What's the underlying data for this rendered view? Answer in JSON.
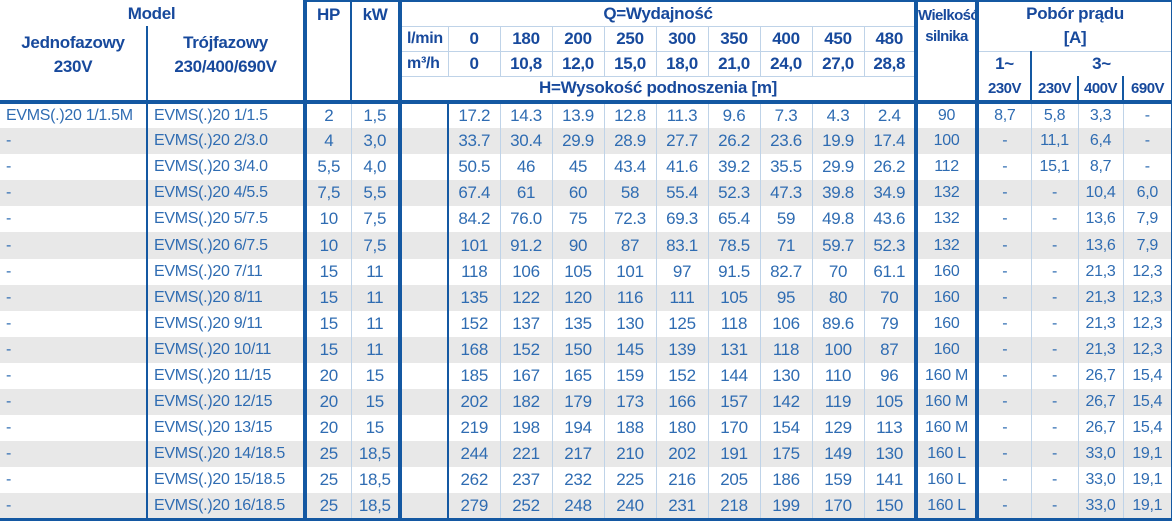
{
  "colors": {
    "border_dark_blue": "#1458A2",
    "separator_light_blue": "#BFD3E8",
    "header_text_navy": "#17499C",
    "data_text_blue": "#2F6CB2",
    "stripe_gray": "#E8E8E8"
  },
  "table": {
    "header": {
      "model": "Model",
      "jednofazowy": "Jednofazowy\n230V",
      "trojfazowy": "Trójfazowy\n230/400/690V",
      "hp": "HP",
      "kw": "kW",
      "q_title": "Q=Wydajność",
      "unit_lmin": "l/min",
      "unit_m3h": "m³/h",
      "q_lmin": [
        "0",
        "180",
        "200",
        "250",
        "300",
        "350",
        "400",
        "450",
        "480"
      ],
      "q_m3h": [
        "0",
        "10,8",
        "12,0",
        "15,0",
        "18,0",
        "21,0",
        "24,0",
        "27,0",
        "28,8"
      ],
      "h_title": "H=Wysokość podnoszenia [m]",
      "motor_size": "Wielkość\nsilnika",
      "current_title": "Pobór prądu\n[A]",
      "phase1": "1~",
      "phase3": "3~",
      "volt_cols": [
        "230V",
        "230V",
        "400V",
        "690V"
      ]
    },
    "rows": [
      {
        "m1": "EVMS(.)20 1/1.5M",
        "m3": "EVMS(.)20 1/1.5",
        "hp": "2",
        "kw": "1,5",
        "h": [
          "17.2",
          "14.3",
          "13.9",
          "12.8",
          "11.3",
          "9.6",
          "7.3",
          "4.3",
          "2.4"
        ],
        "motor": "90",
        "a": [
          "8,7",
          "5,8",
          "3,3",
          "-"
        ]
      },
      {
        "m1": "-",
        "m3": "EVMS(.)20 2/3.0",
        "hp": "4",
        "kw": "3,0",
        "h": [
          "33.7",
          "30.4",
          "29.9",
          "28.9",
          "27.7",
          "26.2",
          "23.6",
          "19.9",
          "17.4"
        ],
        "motor": "100",
        "a": [
          "-",
          "11,1",
          "6,4",
          "-"
        ]
      },
      {
        "m1": "-",
        "m3": "EVMS(.)20 3/4.0",
        "hp": "5,5",
        "kw": "4,0",
        "h": [
          "50.5",
          "46",
          "45",
          "43.4",
          "41.6",
          "39.2",
          "35.5",
          "29.9",
          "26.2"
        ],
        "motor": "112",
        "a": [
          "-",
          "15,1",
          "8,7",
          "-"
        ]
      },
      {
        "m1": "-",
        "m3": "EVMS(.)20 4/5.5",
        "hp": "7,5",
        "kw": "5,5",
        "h": [
          "67.4",
          "61",
          "60",
          "58",
          "55.4",
          "52.3",
          "47.3",
          "39.8",
          "34.9"
        ],
        "motor": "132",
        "a": [
          "-",
          "-",
          "10,4",
          "6,0"
        ]
      },
      {
        "m1": "-",
        "m3": "EVMS(.)20 5/7.5",
        "hp": "10",
        "kw": "7,5",
        "h": [
          "84.2",
          "76.0",
          "75",
          "72.3",
          "69.3",
          "65.4",
          "59",
          "49.8",
          "43.6"
        ],
        "motor": "132",
        "a": [
          "-",
          "-",
          "13,6",
          "7,9"
        ]
      },
      {
        "m1": "-",
        "m3": "EVMS(.)20 6/7.5",
        "hp": "10",
        "kw": "7,5",
        "h": [
          "101",
          "91.2",
          "90",
          "87",
          "83.1",
          "78.5",
          "71",
          "59.7",
          "52.3"
        ],
        "motor": "132",
        "a": [
          "-",
          "-",
          "13,6",
          "7,9"
        ]
      },
      {
        "m1": "-",
        "m3": "EVMS(.)20 7/11",
        "hp": "15",
        "kw": "11",
        "h": [
          "118",
          "106",
          "105",
          "101",
          "97",
          "91.5",
          "82.7",
          "70",
          "61.1"
        ],
        "motor": "160",
        "a": [
          "-",
          "-",
          "21,3",
          "12,3"
        ]
      },
      {
        "m1": "-",
        "m3": "EVMS(.)20 8/11",
        "hp": "15",
        "kw": "11",
        "h": [
          "135",
          "122",
          "120",
          "116",
          "111",
          "105",
          "95",
          "80",
          "70"
        ],
        "motor": "160",
        "a": [
          "-",
          "-",
          "21,3",
          "12,3"
        ]
      },
      {
        "m1": "-",
        "m3": "EVMS(.)20 9/11",
        "hp": "15",
        "kw": "11",
        "h": [
          "152",
          "137",
          "135",
          "130",
          "125",
          "118",
          "106",
          "89.6",
          "79"
        ],
        "motor": "160",
        "a": [
          "-",
          "-",
          "21,3",
          "12,3"
        ]
      },
      {
        "m1": "-",
        "m3": "EVMS(.)20 10/11",
        "hp": "15",
        "kw": "11",
        "h": [
          "168",
          "152",
          "150",
          "145",
          "139",
          "131",
          "118",
          "100",
          "87"
        ],
        "motor": "160",
        "a": [
          "-",
          "-",
          "21,3",
          "12,3"
        ]
      },
      {
        "m1": "-",
        "m3": "EVMS(.)20 11/15",
        "hp": "20",
        "kw": "15",
        "h": [
          "185",
          "167",
          "165",
          "159",
          "152",
          "144",
          "130",
          "110",
          "96"
        ],
        "motor": "160 M",
        "a": [
          "-",
          "-",
          "26,7",
          "15,4"
        ]
      },
      {
        "m1": "-",
        "m3": "EVMS(.)20 12/15",
        "hp": "20",
        "kw": "15",
        "h": [
          "202",
          "182",
          "179",
          "173",
          "166",
          "157",
          "142",
          "119",
          "105"
        ],
        "motor": "160 M",
        "a": [
          "-",
          "-",
          "26,7",
          "15,4"
        ]
      },
      {
        "m1": "-",
        "m3": "EVMS(.)20 13/15",
        "hp": "20",
        "kw": "15",
        "h": [
          "219",
          "198",
          "194",
          "188",
          "180",
          "170",
          "154",
          "129",
          "113"
        ],
        "motor": "160 M",
        "a": [
          "-",
          "-",
          "26,7",
          "15,4"
        ]
      },
      {
        "m1": "-",
        "m3": "EVMS(.)20 14/18.5",
        "hp": "25",
        "kw": "18,5",
        "h": [
          "244",
          "221",
          "217",
          "210",
          "202",
          "191",
          "175",
          "149",
          "130"
        ],
        "motor": "160 L",
        "a": [
          "-",
          "-",
          "33,0",
          "19,1"
        ]
      },
      {
        "m1": "-",
        "m3": "EVMS(.)20 15/18.5",
        "hp": "25",
        "kw": "18,5",
        "h": [
          "262",
          "237",
          "232",
          "225",
          "216",
          "205",
          "186",
          "159",
          "141"
        ],
        "motor": "160 L",
        "a": [
          "-",
          "-",
          "33,0",
          "19,1"
        ]
      },
      {
        "m1": "-",
        "m3": "EVMS(.)20 16/18.5",
        "hp": "25",
        "kw": "18,5",
        "h": [
          "279",
          "252",
          "248",
          "240",
          "231",
          "218",
          "199",
          "170",
          "150"
        ],
        "motor": "160 L",
        "a": [
          "-",
          "-",
          "33,0",
          "19,1"
        ]
      }
    ]
  }
}
